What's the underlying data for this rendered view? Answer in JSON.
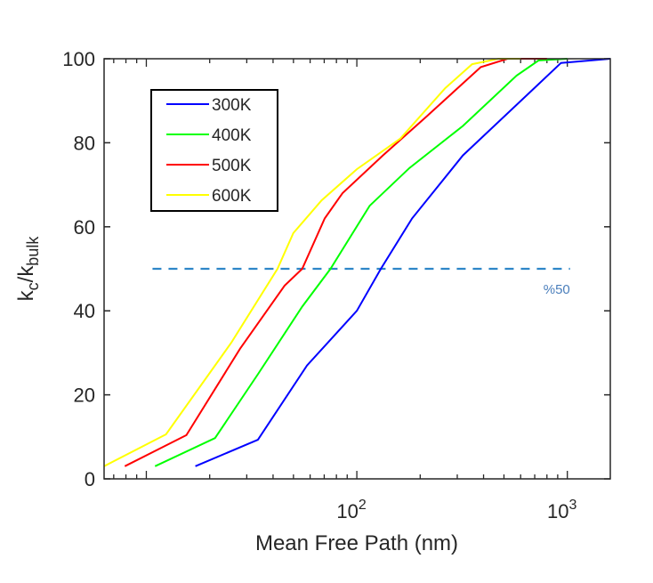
{
  "chart_data": {
    "type": "line",
    "title": "",
    "xlabel": "Mean Free Path (nm)",
    "ylabel_main": "k",
    "ylabel_sub1": "c",
    "ylabel_slash": "/k",
    "ylabel_sub2": "bulk",
    "xscale": "log",
    "xlim": [
      6.3,
      1600
    ],
    "ylim": [
      0,
      100
    ],
    "yticks": [
      0,
      20,
      40,
      60,
      80,
      100
    ],
    "xticks": [
      {
        "value": 100,
        "base": "10",
        "exp": "2"
      },
      {
        "value": 1000,
        "base": "10",
        "exp": "3"
      }
    ],
    "legend_placement": "top-left",
    "series": [
      {
        "name": "300K",
        "color": "#0000ff",
        "x": [
          17.1,
          33.9,
          58,
          100,
          130,
          183,
          319,
          697,
          933,
          1600
        ],
        "y": [
          3,
          9.3,
          27,
          40,
          50,
          62,
          77,
          93,
          99,
          100
        ]
      },
      {
        "name": "400K",
        "color": "#00ff00",
        "x": [
          11,
          21.2,
          34,
          55,
          75,
          115,
          178,
          319,
          574,
          730,
          1000
        ],
        "y": [
          3,
          9.7,
          25,
          41,
          50,
          65,
          74,
          84,
          96,
          99.6,
          100
        ]
      },
      {
        "name": "500K",
        "color": "#ff0000",
        "x": [
          7.9,
          15.5,
          27.9,
          45.4,
          55,
          70.4,
          85.5,
          133,
          216,
          388,
          520,
          800
        ],
        "y": [
          3,
          10.4,
          31,
          46,
          50,
          62,
          68,
          77,
          86.4,
          98,
          100,
          100
        ]
      },
      {
        "name": "600K",
        "color": "#ffff00",
        "x": [
          6.3,
          12.4,
          25.3,
          42,
          49.9,
          68,
          100,
          161,
          263,
          353,
          471,
          600
        ],
        "y": [
          3,
          10.6,
          32.4,
          50,
          58.5,
          66.3,
          73.7,
          81,
          93,
          98.7,
          100,
          100
        ]
      }
    ],
    "reference_line": {
      "y": 50,
      "x_range": [
        10.7,
        1030
      ],
      "color": "#2e86c8",
      "style": "dashed",
      "label": "%50",
      "label_color": "#4a7ebb"
    }
  }
}
